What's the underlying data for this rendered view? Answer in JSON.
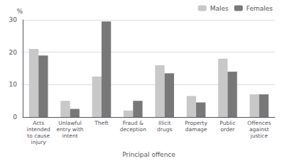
{
  "chart_data": {
    "type": "bar",
    "categories": [
      "Acts\nintended\nto cause\ninjury",
      "Unlawful\nentry with\nintent",
      "Theft",
      "Fraud &\ndeception",
      "Illicit\ndrugs",
      "Property\ndamage",
      "Public\norder",
      "Offences\nagainst\njustice"
    ],
    "series": [
      {
        "name": "Males",
        "color": "#c8c8c8",
        "values": [
          21,
          5,
          12.5,
          2,
          16,
          6.5,
          18,
          7
        ]
      },
      {
        "name": "Females",
        "color": "#787878",
        "values": [
          19,
          2.5,
          29.5,
          5,
          13.5,
          4.5,
          14,
          7
        ]
      }
    ],
    "ylabel": "%",
    "xlabel": "Principal offence",
    "ylim": [
      0,
      30
    ],
    "yticks": [
      0,
      10,
      20,
      30
    ],
    "grid": true,
    "legend": "upper right"
  }
}
